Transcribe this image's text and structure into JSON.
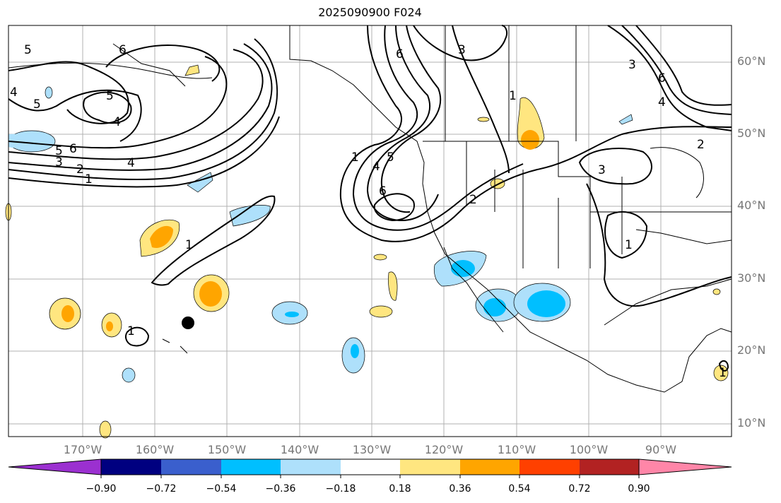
{
  "title": "2025090900 F024",
  "lat_labels": [
    "60°N",
    "50°N",
    "40°N",
    "30°N",
    "20°N",
    "10°N"
  ],
  "lon_labels": [
    "170°W",
    "160°W",
    "150°W",
    "140°W",
    "130°W",
    "120°W",
    "110°W",
    "100°W",
    "90°W"
  ],
  "contour_labels": [
    "1",
    "2",
    "3",
    "4",
    "5",
    "6"
  ],
  "colorbar": {
    "ticks": [
      "−0.90",
      "−0.72",
      "−0.54",
      "−0.36",
      "−0.18",
      "0.18",
      "0.36",
      "0.54",
      "0.72",
      "0.90"
    ],
    "colors": [
      "#9b30d0",
      "#000080",
      "#3a5fcd",
      "#00bfff",
      "#aee0fb",
      "#ffffff",
      "#ffe680",
      "#ffa500",
      "#ff4000",
      "#b22222",
      "#ff86a8"
    ],
    "under_color": "#9b30d0",
    "over_color": "#ff86a8"
  },
  "marker": {
    "name": "black-dot",
    "lon": -155.5,
    "lat": 23.7
  }
}
